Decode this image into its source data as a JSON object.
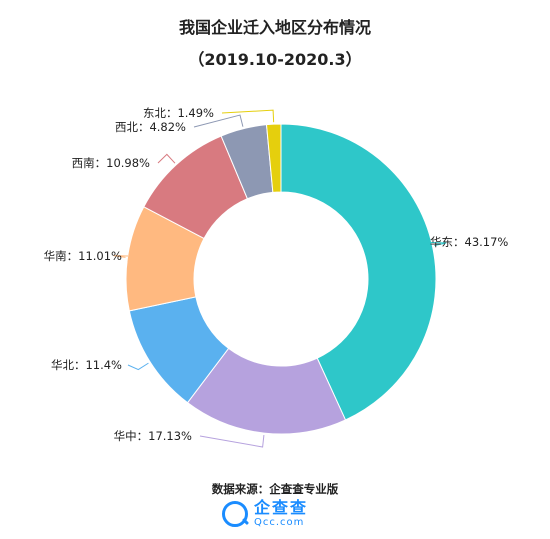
{
  "chart_data": {
    "type": "pie",
    "title": "我国企业迁入地区分布情况",
    "subtitle": "（2019.10-2020.3）",
    "categories": [
      "华东",
      "华中",
      "华北",
      "华南",
      "西南",
      "西北",
      "东北"
    ],
    "values": [
      43.17,
      17.13,
      11.4,
      11.01,
      10.98,
      4.82,
      1.49
    ],
    "value_labels": [
      "43.17%",
      "17.13%",
      "11.4%",
      "11.01%",
      "10.98%",
      "4.82%",
      "1.49%"
    ],
    "colors": [
      "#2ec7c9",
      "#b6a2de",
      "#5ab1ef",
      "#ffb980",
      "#d87a80",
      "#8d98b3",
      "#e5cf0d"
    ],
    "style": "donut",
    "legend": "none"
  },
  "footer": {
    "source": "数据来源：企查查专业版",
    "logo_cn": "企查查",
    "logo_en": "Qcc.com"
  }
}
